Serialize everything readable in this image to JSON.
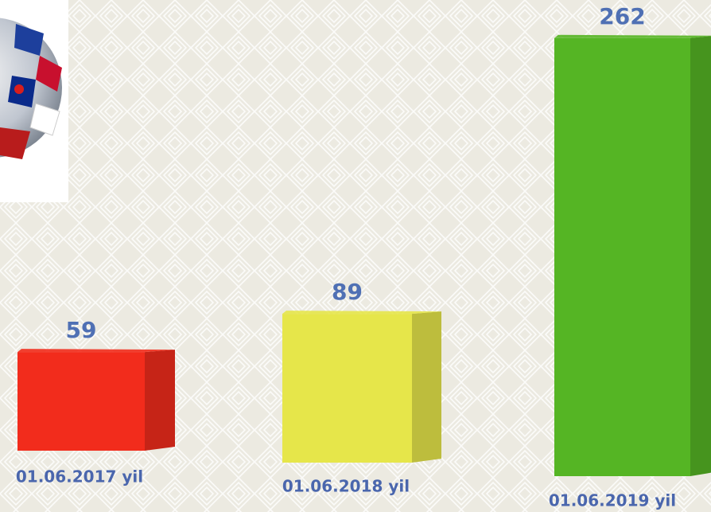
{
  "chart_data": {
    "type": "bar",
    "categories": [
      "01.06.2017 yil",
      "01.06.2018 yil",
      "01.06.2019 yil"
    ],
    "values": [
      59,
      89,
      262
    ],
    "colors": [
      "#f22c1c",
      "#e6e64a",
      "#55b524"
    ]
  }
}
